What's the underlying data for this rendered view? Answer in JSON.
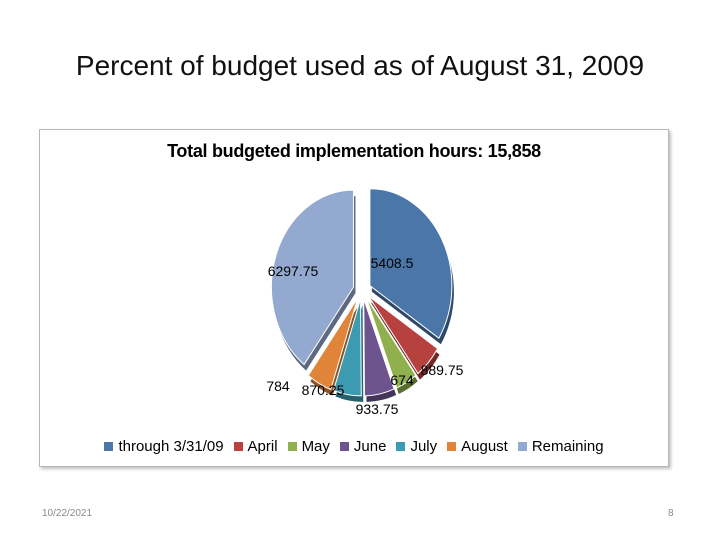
{
  "slide": {
    "title": "Percent of budget used as of August 31, 2009",
    "date": "10/22/2021",
    "page_number": "8"
  },
  "chart_data": {
    "type": "pie",
    "title": "Total budgeted implementation hours: 15,858",
    "categories": [
      "through 3/31/09",
      "April",
      "May",
      "June",
      "July",
      "August",
      "Remaining"
    ],
    "values": [
      5408.5,
      889.75,
      674,
      933.75,
      870.25,
      784,
      6297.75
    ],
    "data_labels": [
      "5408.5",
      "889.75",
      "674",
      "933.75",
      "870.25",
      "784",
      "6297.75"
    ],
    "colors": [
      "#4a76a8",
      "#b7413f",
      "#8fb04c",
      "#6e548f",
      "#3d9bb1",
      "#e0843a",
      "#93a9d0"
    ],
    "exploded": true,
    "legend_position": "bottom"
  }
}
